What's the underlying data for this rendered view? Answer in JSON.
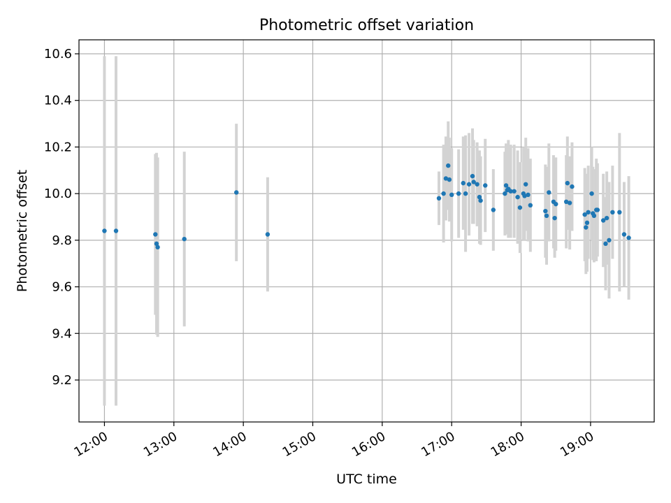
{
  "chart_data": {
    "type": "scatter",
    "title": "Photometric offset variation",
    "xlabel": "UTC time",
    "ylabel": "Photometric offset",
    "x_tick_labels": [
      "12:00",
      "13:00",
      "14:00",
      "15:00",
      "16:00",
      "17:00",
      "18:00",
      "19:00"
    ],
    "y_tick_labels": [
      "9.2",
      "9.4",
      "9.6",
      "9.8",
      "10.0",
      "10.2",
      "10.4",
      "10.6"
    ],
    "x_ticks": [
      "12:00",
      "13:00",
      "14:00",
      "15:00",
      "16:00",
      "17:00",
      "18:00",
      "19:00"
    ],
    "y_ticks": [
      9.2,
      9.4,
      9.6,
      9.8,
      10.0,
      10.2,
      10.4,
      10.6
    ],
    "xlim": [
      "11:38",
      "19:55"
    ],
    "ylim": [
      9.02,
      10.66
    ],
    "grid": true,
    "colors": {
      "marker": "#1f77b4",
      "errorbar": "#d3d3d3",
      "grid": "#b0b0b0"
    },
    "points": [
      {
        "x": "12:00",
        "y": 9.84,
        "yerr": 0.75
      },
      {
        "x": "12:10",
        "y": 9.84,
        "yerr": 0.75
      },
      {
        "x": "12:44",
        "y": 9.825,
        "yerr": 0.345
      },
      {
        "x": "12:45",
        "y": 9.785,
        "yerr": 0.39
      },
      {
        "x": "12:46",
        "y": 9.77,
        "yerr": 0.385
      },
      {
        "x": "13:09",
        "y": 9.805,
        "yerr": 0.375
      },
      {
        "x": "13:54",
        "y": 10.005,
        "yerr": 0.295
      },
      {
        "x": "14:21",
        "y": 9.825,
        "yerr": 0.245
      },
      {
        "x": "16:49",
        "y": 9.98,
        "yerr": 0.115
      },
      {
        "x": "16:53",
        "y": 10.0,
        "yerr": 0.21
      },
      {
        "x": "16:55",
        "y": 10.065,
        "yerr": 0.18
      },
      {
        "x": "16:57",
        "y": 10.12,
        "yerr": 0.19
      },
      {
        "x": "16:58",
        "y": 10.06,
        "yerr": 0.18
      },
      {
        "x": "17:00",
        "y": 9.995,
        "yerr": 0.2
      },
      {
        "x": "17:06",
        "y": 10.0,
        "yerr": 0.19
      },
      {
        "x": "17:10",
        "y": 10.045,
        "yerr": 0.2
      },
      {
        "x": "17:12",
        "y": 10.0,
        "yerr": 0.25
      },
      {
        "x": "17:15",
        "y": 10.04,
        "yerr": 0.22
      },
      {
        "x": "17:18",
        "y": 10.075,
        "yerr": 0.205
      },
      {
        "x": "17:19",
        "y": 10.05,
        "yerr": 0.18
      },
      {
        "x": "17:22",
        "y": 10.04,
        "yerr": 0.18
      },
      {
        "x": "17:24",
        "y": 9.985,
        "yerr": 0.2
      },
      {
        "x": "17:25",
        "y": 9.97,
        "yerr": 0.19
      },
      {
        "x": "17:29",
        "y": 10.035,
        "yerr": 0.2
      },
      {
        "x": "17:36",
        "y": 9.93,
        "yerr": 0.175
      },
      {
        "x": "17:46",
        "y": 10.0,
        "yerr": 0.18
      },
      {
        "x": "17:47",
        "y": 10.035,
        "yerr": 0.18
      },
      {
        "x": "17:48",
        "y": 10.015,
        "yerr": 0.19
      },
      {
        "x": "17:49",
        "y": 10.02,
        "yerr": 0.21
      },
      {
        "x": "17:51",
        "y": 10.01,
        "yerr": 0.2
      },
      {
        "x": "17:54",
        "y": 10.01,
        "yerr": 0.2
      },
      {
        "x": "17:57",
        "y": 9.985,
        "yerr": 0.2
      },
      {
        "x": "17:59",
        "y": 9.94,
        "yerr": 0.195
      },
      {
        "x": "18:02",
        "y": 10.0,
        "yerr": 0.2
      },
      {
        "x": "18:03",
        "y": 9.99,
        "yerr": 0.19
      },
      {
        "x": "18:04",
        "y": 10.04,
        "yerr": 0.2
      },
      {
        "x": "18:06",
        "y": 9.995,
        "yerr": 0.2
      },
      {
        "x": "18:08",
        "y": 9.95,
        "yerr": 0.2
      },
      {
        "x": "18:21",
        "y": 9.925,
        "yerr": 0.2
      },
      {
        "x": "18:22",
        "y": 9.905,
        "yerr": 0.21
      },
      {
        "x": "18:24",
        "y": 10.005,
        "yerr": 0.21
      },
      {
        "x": "18:28",
        "y": 9.965,
        "yerr": 0.2
      },
      {
        "x": "18:29",
        "y": 9.895,
        "yerr": 0.17
      },
      {
        "x": "18:30",
        "y": 9.955,
        "yerr": 0.2
      },
      {
        "x": "18:39",
        "y": 9.965,
        "yerr": 0.2
      },
      {
        "x": "18:40",
        "y": 10.045,
        "yerr": 0.2
      },
      {
        "x": "18:42",
        "y": 9.96,
        "yerr": 0.2
      },
      {
        "x": "18:44",
        "y": 10.03,
        "yerr": 0.19
      },
      {
        "x": "18:55",
        "y": 9.91,
        "yerr": 0.2
      },
      {
        "x": "18:56",
        "y": 9.855,
        "yerr": 0.2
      },
      {
        "x": "18:57",
        "y": 9.875,
        "yerr": 0.21
      },
      {
        "x": "18:58",
        "y": 9.92,
        "yerr": 0.2
      },
      {
        "x": "19:01",
        "y": 10.0,
        "yerr": 0.2
      },
      {
        "x": "19:02",
        "y": 9.915,
        "yerr": 0.2
      },
      {
        "x": "19:03",
        "y": 9.905,
        "yerr": 0.2
      },
      {
        "x": "19:05",
        "y": 9.93,
        "yerr": 0.22
      },
      {
        "x": "19:06",
        "y": 9.93,
        "yerr": 0.2
      },
      {
        "x": "19:11",
        "y": 9.885,
        "yerr": 0.2
      },
      {
        "x": "19:13",
        "y": 9.785,
        "yerr": 0.2
      },
      {
        "x": "19:14",
        "y": 9.895,
        "yerr": 0.2
      },
      {
        "x": "19:16",
        "y": 9.8,
        "yerr": 0.25
      },
      {
        "x": "19:19",
        "y": 9.92,
        "yerr": 0.2
      },
      {
        "x": "19:25",
        "y": 9.92,
        "yerr": 0.34
      },
      {
        "x": "19:29",
        "y": 9.825,
        "yerr": 0.225
      },
      {
        "x": "19:33",
        "y": 9.81,
        "yerr": 0.265
      }
    ]
  }
}
